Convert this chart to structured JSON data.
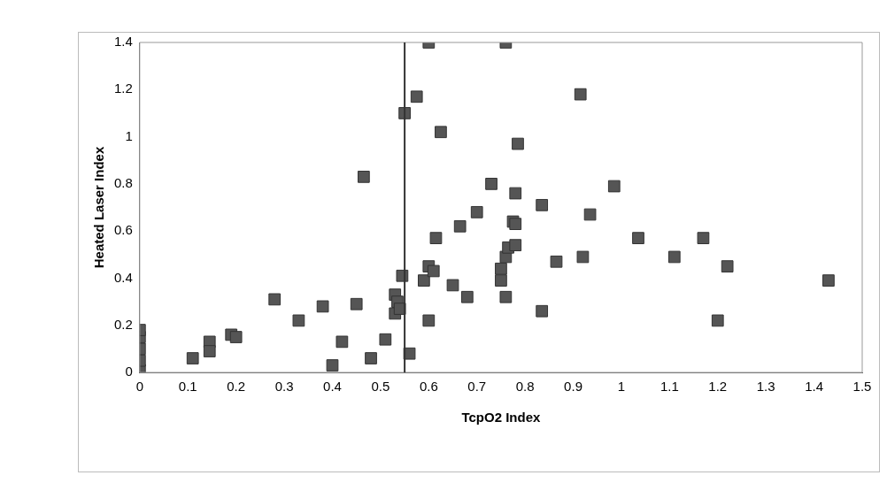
{
  "chart_data": {
    "type": "scatter",
    "xlabel": "TcpO2 Index",
    "ylabel": "Heated Laser Index",
    "x": [
      0,
      0,
      0,
      0,
      0,
      0.11,
      0.145,
      0.145,
      0.19,
      0.2,
      0.28,
      0.33,
      0.38,
      0.4,
      0.42,
      0.45,
      0.465,
      0.48,
      0.51,
      0.53,
      0.53,
      0.535,
      0.54,
      0.545,
      0.55,
      0.56,
      0.575,
      0.6,
      0.59,
      0.6,
      0.61,
      0.6,
      0.615,
      0.625,
      0.65,
      0.665,
      0.68,
      0.7,
      0.73,
      0.75,
      0.75,
      0.76,
      0.765,
      0.76,
      0.76,
      0.775,
      0.78,
      0.78,
      0.78,
      0.785,
      0.835,
      0.835,
      0.865,
      0.915,
      0.92,
      0.935,
      0.985,
      1.035,
      1.11,
      1.17,
      1.2,
      1.22,
      1.43
    ],
    "values": [
      0.01,
      0.05,
      0.1,
      0.15,
      0.18,
      0.06,
      0.13,
      0.09,
      0.16,
      0.15,
      0.31,
      0.22,
      0.28,
      0.03,
      0.13,
      0.29,
      0.83,
      0.06,
      0.14,
      0.33,
      0.25,
      0.3,
      0.27,
      0.41,
      1.1,
      0.08,
      1.17,
      1.4,
      0.39,
      0.45,
      0.43,
      0.22,
      0.57,
      1.02,
      0.37,
      0.62,
      0.32,
      0.68,
      0.8,
      0.39,
      0.44,
      0.49,
      0.53,
      1.4,
      0.32,
      0.64,
      0.63,
      0.54,
      0.76,
      0.97,
      0.71,
      0.26,
      0.47,
      1.18,
      0.49,
      0.67,
      0.79,
      0.57,
      0.49,
      0.57,
      0.22,
      0.45,
      0.39
    ],
    "color": "#555555",
    "marker": "square",
    "xlim": [
      0,
      1.5
    ],
    "xticks": [
      0,
      0.1,
      0.2,
      0.3,
      0.4,
      0.5,
      0.6,
      0.7,
      0.8,
      0.9,
      1,
      1.1,
      1.2,
      1.3,
      1.4,
      1.5
    ],
    "ylim": [
      0,
      1.4
    ],
    "yticks": [
      0,
      0.2,
      0.4,
      0.6,
      0.8,
      1,
      1.2,
      1.4
    ],
    "ref_lines": [
      {
        "axis": "x",
        "value": 0.55,
        "color": "#333333"
      }
    ],
    "grid": false,
    "legend": false
  }
}
